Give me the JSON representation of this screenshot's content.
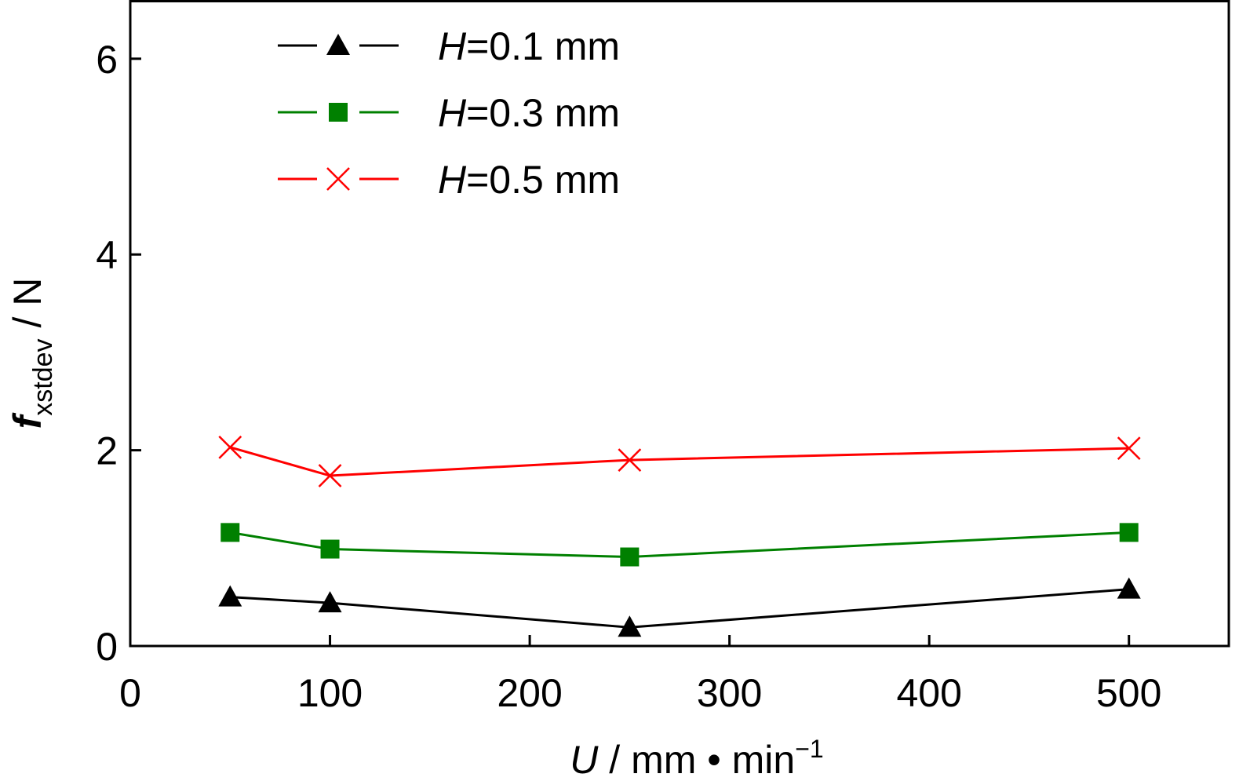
{
  "chart_data": {
    "type": "line",
    "x": [
      50,
      100,
      250,
      500
    ],
    "xlim": [
      0,
      550
    ],
    "ylim": [
      0,
      6.6
    ],
    "xticks": [
      0,
      100,
      200,
      300,
      400,
      500
    ],
    "yticks": [
      0,
      2,
      4,
      6
    ],
    "xtick_labels": [
      "0",
      "100",
      "200",
      "300",
      "400",
      "500"
    ],
    "ytick_labels": [
      "0",
      "2",
      "4",
      "6"
    ],
    "xlabel": {
      "var": "U",
      "unit": " / mm • min",
      "sup": "−1"
    },
    "ylabel": {
      "var": "f",
      "sub": "xstdev",
      "unit": " / N"
    },
    "grid": false,
    "legend_position": "top-left",
    "series": [
      {
        "name_var": "H",
        "name_rest": "=0.1 mm",
        "marker": "triangle",
        "color": "#000000",
        "values": [
          0.5,
          0.44,
          0.19,
          0.58
        ]
      },
      {
        "name_var": "H",
        "name_rest": "=0.3 mm",
        "marker": "square",
        "color": "#008000",
        "values": [
          1.16,
          0.99,
          0.91,
          1.16
        ]
      },
      {
        "name_var": "H",
        "name_rest": "=0.5 mm",
        "marker": "x",
        "color": "#ff0000",
        "values": [
          2.03,
          1.74,
          1.9,
          2.02
        ]
      }
    ]
  }
}
